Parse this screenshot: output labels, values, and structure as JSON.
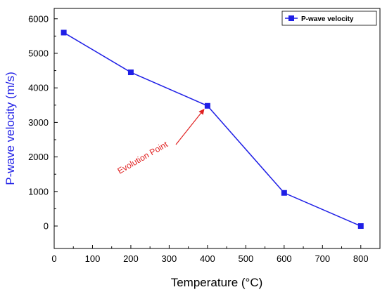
{
  "chart_data": {
    "type": "line",
    "xlabel": "Temperature (°C)",
    "ylabel": "P-wave velocity (m/s)",
    "xlim": [
      0,
      850
    ],
    "ylim": [
      -650,
      6300
    ],
    "x_ticks": [
      0,
      100,
      200,
      300,
      400,
      500,
      600,
      700,
      800
    ],
    "y_ticks": [
      0,
      1000,
      2000,
      3000,
      4000,
      5000,
      6000
    ],
    "grid": false,
    "legend_position": "top-right",
    "series": [
      {
        "name": "P-wave velocity",
        "color": "#1f1fe6",
        "marker": "square",
        "x": [
          25,
          200,
          400,
          600,
          800
        ],
        "y": [
          5600,
          4450,
          3480,
          960,
          0
        ]
      }
    ],
    "annotations": [
      {
        "text": "Evolution Point",
        "color": "#e02020",
        "target_x": 400,
        "target_y": 3480
      }
    ],
    "ylabel_color": "#1f1fe6"
  }
}
